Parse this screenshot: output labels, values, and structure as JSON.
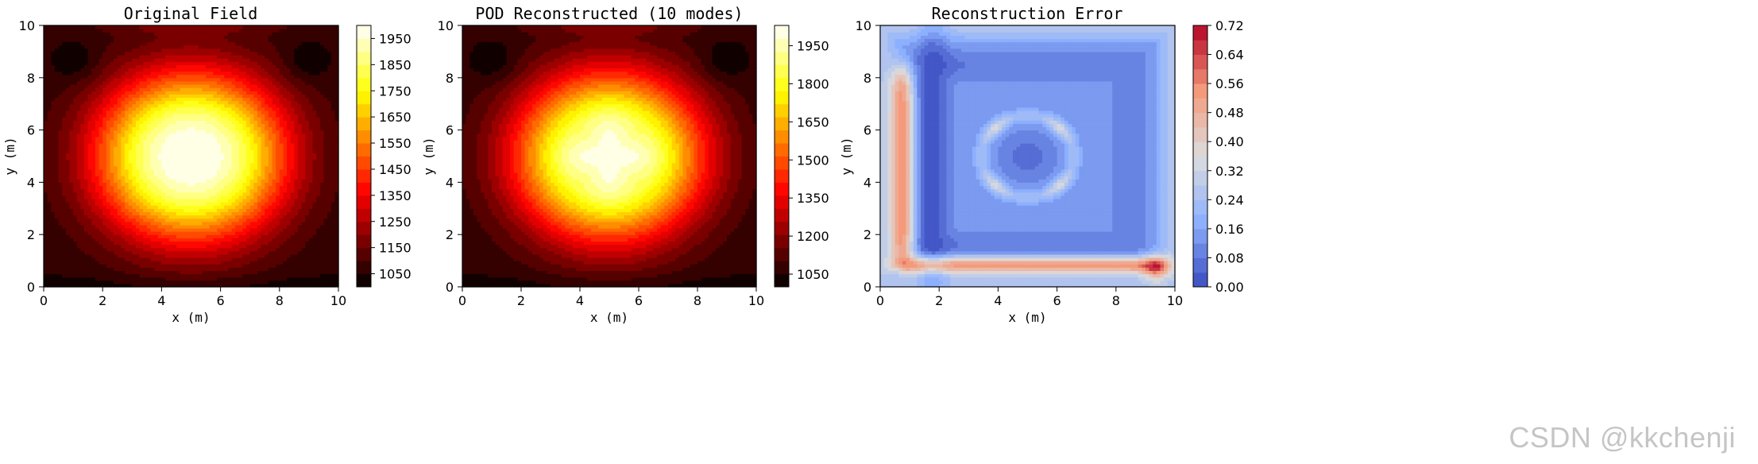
{
  "watermark": "CSDN @kkchenji",
  "chart_data": [
    {
      "type": "heatmap",
      "title": "Original Field",
      "xlabel": "x (m)",
      "ylabel": "y (m)",
      "xlim": [
        0,
        10
      ],
      "ylim": [
        0,
        10
      ],
      "xticks": [
        0,
        2,
        4,
        6,
        8,
        10
      ],
      "yticks": [
        0,
        2,
        4,
        6,
        8,
        10
      ],
      "colormap": "hot",
      "field": "original",
      "value_range": [
        1000,
        2000
      ],
      "colorbar_ticks": [
        1050,
        1150,
        1250,
        1350,
        1450,
        1550,
        1650,
        1750,
        1850,
        1950
      ],
      "colorbar_levels": 20,
      "grid": false
    },
    {
      "type": "heatmap",
      "title": "POD Reconstructed (10 modes)",
      "xlabel": "x (m)",
      "ylabel": "y (m)",
      "xlim": [
        0,
        10
      ],
      "ylim": [
        0,
        10
      ],
      "xticks": [
        0,
        2,
        4,
        6,
        8,
        10
      ],
      "yticks": [
        0,
        2,
        4,
        6,
        8,
        10
      ],
      "colormap": "hot",
      "field": "reconstructed",
      "value_range": [
        1000,
        2030
      ],
      "colorbar_ticks": [
        1050,
        1200,
        1350,
        1500,
        1650,
        1800,
        1950
      ],
      "colorbar_levels": 20,
      "grid": false
    },
    {
      "type": "heatmap",
      "title": "Reconstruction Error",
      "xlabel": "x (m)",
      "ylabel": "y (m)",
      "xlim": [
        0,
        10
      ],
      "ylim": [
        0,
        10
      ],
      "xticks": [
        0,
        2,
        4,
        6,
        8,
        10
      ],
      "yticks": [
        0,
        2,
        4,
        6,
        8,
        10
      ],
      "colormap": "coolwarm",
      "field": "error",
      "value_range": [
        0.0,
        0.72
      ],
      "colorbar_ticks": [
        "0.00",
        "0.08",
        "0.16",
        "0.24",
        "0.32",
        "0.40",
        "0.48",
        "0.56",
        "0.64",
        "0.72"
      ],
      "colorbar_levels": 18,
      "grid": false
    }
  ]
}
